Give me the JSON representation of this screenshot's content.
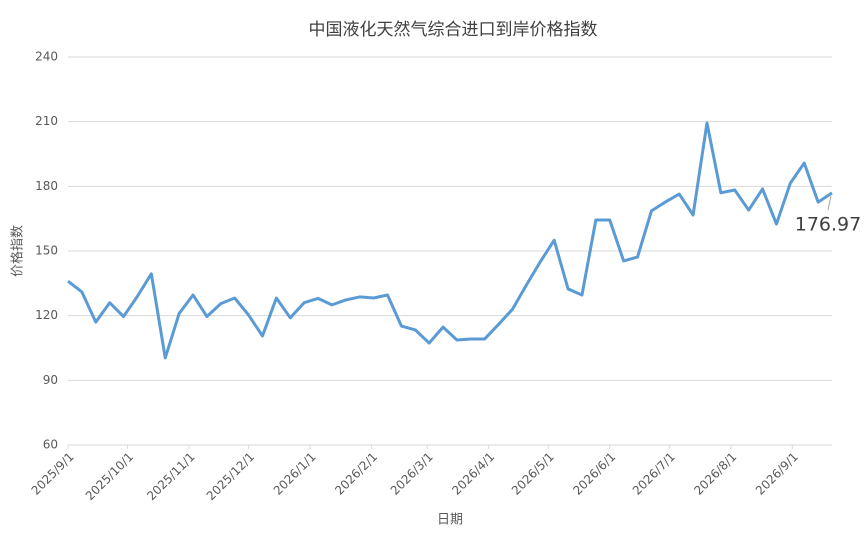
{
  "chart_data": {
    "type": "line",
    "title": "中国液化天然气综合进口到岸价格指数",
    "x_label": "日期",
    "y_label": "价格指数",
    "x": [
      "2025/9/1",
      "2025/9/8",
      "2025/9/15",
      "2025/9/22",
      "2025/9/29",
      "2025/10/6",
      "2025/10/13",
      "2025/10/20",
      "2025/10/27",
      "2025/11/3",
      "2025/11/10",
      "2025/11/17",
      "2025/11/24",
      "2025/12/1",
      "2025/12/8",
      "2025/12/15",
      "2025/12/22",
      "2025/12/29",
      "2026/1/5",
      "2026/1/12",
      "2026/1/19",
      "2026/1/26",
      "2026/2/2",
      "2026/2/9",
      "2026/2/16",
      "2026/2/23",
      "2026/3/2",
      "2026/3/9",
      "2026/3/16",
      "2026/3/23",
      "2026/3/30",
      "2026/4/6",
      "2026/4/13",
      "2026/4/20",
      "2026/4/27",
      "2026/5/4",
      "2026/5/11",
      "2026/5/18",
      "2026/5/25",
      "2026/6/1",
      "2026/6/8",
      "2026/6/15",
      "2026/6/22",
      "2026/6/29",
      "2026/7/6",
      "2026/7/13",
      "2026/7/20",
      "2026/7/27",
      "2026/8/3",
      "2026/8/10",
      "2026/8/17",
      "2026/8/24",
      "2026/8/31",
      "2026/9/7",
      "2026/9/14",
      "2026/9/21"
    ],
    "series": [
      {
        "name": "价格指数",
        "color": "#5b9bd5",
        "values": [
          136,
          131,
          117,
          126,
          119.6,
          129,
          139.4,
          100.4,
          121,
          129.6,
          119.6,
          125.6,
          128.2,
          120.3,
          110.6,
          128.2,
          119,
          126,
          128,
          125,
          127.3,
          128.7,
          128.2,
          129.6,
          115.2,
          113.4,
          107.3,
          114.7,
          108.7,
          109.2,
          109.2,
          116,
          123,
          134.2,
          145,
          155,
          132.4,
          129.6,
          164.4,
          164.4,
          145.4,
          147.2,
          168.6,
          172.7,
          176.4,
          166.7,
          209.4,
          177,
          178.3,
          169,
          178.8,
          162.5,
          181.5,
          190.8,
          172.7,
          176.97
        ]
      }
    ],
    "xlim": [
      "2025/9/1",
      "2026/9/21"
    ],
    "xticks": [
      "2025/9/1",
      "2025/10/1",
      "2025/11/1",
      "2025/12/1",
      "2026/1/1",
      "2026/2/1",
      "2026/3/1",
      "2026/4/1",
      "2026/5/1",
      "2026/6/1",
      "2026/7/1",
      "2026/8/1",
      "2026/9/1"
    ],
    "ylim": [
      60,
      240
    ],
    "yticks": [
      60,
      90,
      120,
      150,
      180,
      210,
      240
    ],
    "grid": true
  }
}
